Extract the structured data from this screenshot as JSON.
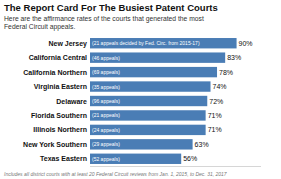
{
  "chart_data": {
    "type": "bar",
    "orientation": "horizontal",
    "title": "The Report Card For The Busiest Patent Courts",
    "subtitle": "Here are the affirmance rates of the courts that generated the most\nFederal Circuit appeals.",
    "footnote": "Includes all district courts with at least 20 Federal Circuit reviews from Jan. 1, 2015, to Dec. 31, 2017",
    "categories": [
      "New Jersey",
      "California Central",
      "California Northern",
      "Virginia Eastern",
      "Delaware",
      "Florida Southern",
      "Illinois Northern",
      "New York Southern",
      "Texas Eastern"
    ],
    "annotations": [
      "(21 appeals decided by Fed. Circ.  from 2015-17)",
      "(46 appeals)",
      "(69 appeals)",
      "(35 appeals)",
      "(96 appeals)",
      "(21 appeals)",
      "(24 appeals)",
      "(29 appeals)",
      "(52 appeals)"
    ],
    "values": [
      90,
      83,
      78,
      74,
      72,
      71,
      71,
      63,
      56
    ],
    "value_labels": [
      "90%",
      "83%",
      "78%",
      "74%",
      "72%",
      "71%",
      "71%",
      "63%",
      "56%"
    ],
    "data_labels": true,
    "color": "#4a7db5",
    "xlim": [
      0,
      105
    ],
    "tick_labels": false,
    "grid": false
  }
}
